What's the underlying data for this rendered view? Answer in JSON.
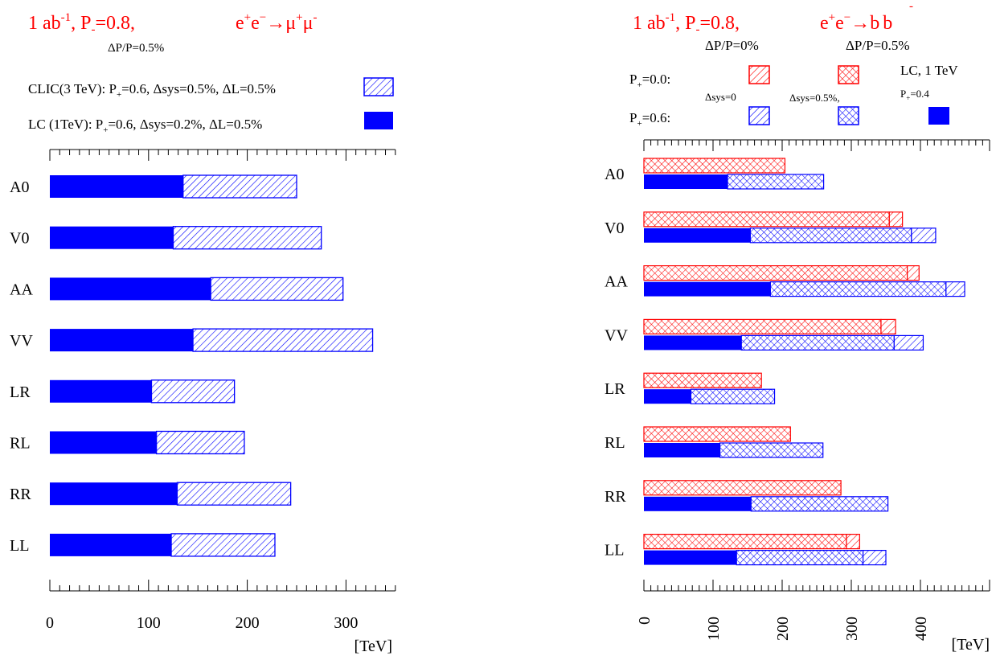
{
  "colors": {
    "lc": "#0000ff",
    "clic": "#0000ff",
    "red": "#ff0000",
    "text_red": "#ff0000",
    "axis": "#000000"
  },
  "left_panel": {
    "header": {
      "lumi": "1 ab",
      "lumi_exp": "-1",
      "pol": "P",
      "pol_sub": "-",
      "pol_val": "=0.8,",
      "process": "e",
      "sup1": "+",
      "e2": "e",
      "sup2": "−",
      "arrow_mu": "→μ",
      "sup3": "+",
      "mu2": "μ",
      "sup4": "-",
      "dpp": "ΔP/P=0.5%"
    },
    "legend": {
      "clic": {
        "a": "CLIC(3 TeV): P",
        "sub": "+",
        "b": "=0.6, Δsys=0.5%, ΔL=0.5%"
      },
      "lc": {
        "a": "LC (1TeV):   P",
        "sub": "+",
        "b": "=0.6, Δsys=0.2%, ΔL=0.5%"
      }
    },
    "unit": "[TeV]"
  },
  "right_panel": {
    "header": {
      "lumi": "1 ab",
      "lumi_exp": "-1",
      "pol": "P",
      "pol_sub": "-",
      "pol_val": "=0.8,",
      "process": "e",
      "sup1": "+",
      "e2": "e",
      "sup2": "−",
      "arrow_b": "→b",
      "b2": "b",
      "bar": "-",
      "dpp0": "ΔP/P=0%",
      "dpp5": "ΔP/P=0.5%"
    },
    "legend": {
      "p0": {
        "a": "P",
        "sub": "+",
        "b": "=0.0:"
      },
      "p6": {
        "a": "P",
        "sub": "+",
        "b": "=0.6:"
      },
      "sys0": "Δsys=0",
      "sys5": "Δsys=0.5%,",
      "lc1": "LC, 1 TeV",
      "lc_p": {
        "a": "P",
        "sub": "+",
        "b": "=0.4"
      }
    },
    "unit": "[TeV]"
  },
  "chart_data": [
    {
      "type": "bar",
      "orientation": "horizontal",
      "title": "1 ab-1, P-=0.8, e+e−→μ+μ-",
      "xlabel": "[TeV]",
      "xlim": [
        0,
        350
      ],
      "xticks": [
        0,
        100,
        200,
        300
      ],
      "categories": [
        "A0",
        "V0",
        "AA",
        "VV",
        "LR",
        "RL",
        "RR",
        "LL"
      ],
      "series": [
        {
          "name": "LC (1TeV): P+=0.6, Δsys=0.2%, ΔL=0.5%",
          "style": "solid-blue",
          "values": [
            135,
            125,
            163,
            145,
            103,
            108,
            129,
            123
          ]
        },
        {
          "name": "CLIC(3 TeV): P+=0.6, Δsys=0.5%, ΔL=0.5%",
          "style": "hatched-blue",
          "values": [
            250,
            275,
            297,
            327,
            187,
            197,
            244,
            228
          ]
        }
      ]
    },
    {
      "type": "bar",
      "orientation": "horizontal",
      "title": "1 ab-1, P-=0.8, e+e−→b b",
      "xlabel": "[TeV]",
      "xlim": [
        0,
        500
      ],
      "xticks": [
        0,
        100,
        200,
        300,
        400
      ],
      "categories": [
        "A0",
        "V0",
        "AA",
        "VV",
        "LR",
        "RL",
        "RR",
        "LL"
      ],
      "series": [
        {
          "name": "P+=0.0, Δsys=0",
          "style": "hatched-red",
          "values": [
            204,
            374,
            398,
            364,
            170,
            212,
            285,
            312
          ]
        },
        {
          "name": "P+=0.0, Δsys=0.5%",
          "style": "crosshatched-red",
          "values": [
            204,
            355,
            381,
            343,
            170,
            212,
            285,
            293
          ]
        },
        {
          "name": "P+=0.6, Δsys=0",
          "style": "hatched-blue",
          "values": [
            260,
            422,
            464,
            404,
            189,
            259,
            353,
            350
          ]
        },
        {
          "name": "P+=0.6, Δsys=0.5%",
          "style": "crosshatched-blue",
          "values": [
            260,
            387,
            437,
            362,
            189,
            259,
            353,
            317
          ]
        },
        {
          "name": "LC, 1 TeV P+=0.4",
          "style": "solid-blue",
          "values": [
            121,
            154,
            183,
            141,
            68,
            110,
            155,
            134
          ]
        }
      ]
    }
  ]
}
